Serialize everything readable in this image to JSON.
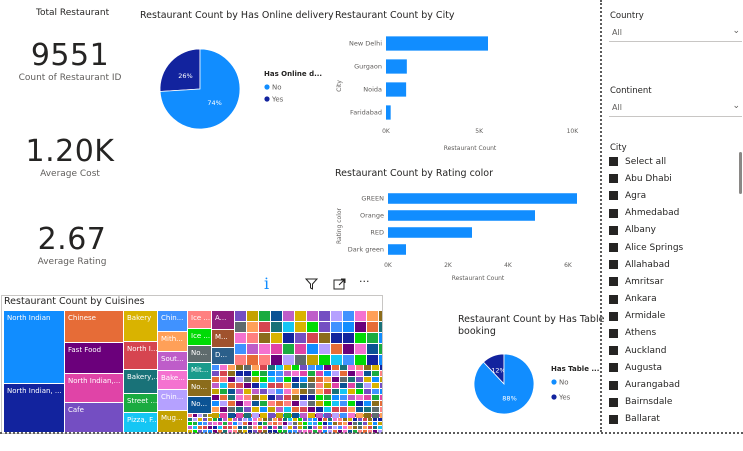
{
  "kpis": [
    {
      "title": "Total Restaurant",
      "value": "9551",
      "label": "Count of Restaurant ID"
    },
    {
      "title": "",
      "value": "1.20K",
      "label": "Average Cost"
    },
    {
      "title": "",
      "value": "2.67",
      "label": "Average Rating"
    }
  ],
  "online_delivery": {
    "title": "Restaurant Count by Has Online delivery",
    "legend_title": "Has Online d...",
    "legend": [
      {
        "name": "No",
        "color": "#118dff"
      },
      {
        "name": "Yes",
        "color": "#12239e"
      }
    ],
    "labels": [
      "26%",
      "74%"
    ]
  },
  "city_chart": {
    "title": "Restaurant Count by City",
    "ylabel": "City",
    "xlabel": "Restaurant Count",
    "ticks": [
      "0K",
      "5K",
      "10K"
    ]
  },
  "rating_chart": {
    "title": "Restaurant Count by Rating color",
    "ylabel": "Rating color",
    "xlabel": "Restaurant Count",
    "ticks": [
      "0K",
      "2K",
      "4K",
      "6K"
    ]
  },
  "table_booking": {
    "title": "Restaurant Count by Has Table booking",
    "legend_title": "Has Table ...",
    "legend": [
      {
        "name": "No",
        "color": "#118dff"
      },
      {
        "name": "Yes",
        "color": "#12239e"
      }
    ],
    "labels": [
      "12%",
      "88%"
    ]
  },
  "treemap": {
    "title": "Restaurant Count by Cuisines",
    "cells": [
      "North Indian",
      "North Indian, ...",
      "Chinese",
      "Fast Food",
      "North Indian,...",
      "Cafe",
      "Bakery",
      "North I...",
      "Bakery,...",
      "Street ...",
      "Pizza, F...",
      "Chin...",
      "Mith...",
      "Sout...",
      "Bake...",
      "Chin...",
      "Mug...",
      "Ice ...",
      "Ice ...",
      "No...",
      "Mit...",
      "No...",
      "No...",
      "A...",
      "M...",
      "D..."
    ]
  },
  "visual_header": {
    "info": "i",
    "filter": "filter",
    "focus": "focus",
    "more": "···"
  },
  "slicers": {
    "country": {
      "title": "Country",
      "value": "All"
    },
    "continent": {
      "title": "Continent",
      "value": "All"
    },
    "city": {
      "title": "City",
      "items": [
        "Select all",
        "Abu Dhabi",
        "Agra",
        "Ahmedabad",
        "Albany",
        "Alice Springs",
        "Allahabad",
        "Amritsar",
        "Ankara",
        "Armidale",
        "Athens",
        "Auckland",
        "Augusta",
        "Aurangabad",
        "Bairnsdale",
        "Ballarat"
      ]
    }
  },
  "chart_data": [
    {
      "type": "pie",
      "title": "Restaurant Count by Has Online delivery",
      "categories": [
        "No",
        "Yes"
      ],
      "values": [
        74,
        26
      ]
    },
    {
      "type": "bar",
      "title": "Restaurant Count by City",
      "categories": [
        "New Delhi",
        "Gurgaon",
        "Noida",
        "Faridabad"
      ],
      "values": [
        5473,
        1118,
        1080,
        251
      ],
      "xlim": [
        0,
        11000
      ],
      "xlabel": "Restaurant Count",
      "ylabel": "City"
    },
    {
      "type": "bar",
      "title": "Restaurant Count by Rating color",
      "categories": [
        "GREEN",
        "Orange",
        "RED",
        "Dark green"
      ],
      "values": [
        6300,
        4900,
        2800,
        600
      ],
      "xlim": [
        0,
        6500
      ],
      "xlabel": "Restaurant Count",
      "ylabel": "Rating color"
    },
    {
      "type": "pie",
      "title": "Restaurant Count by Has Table booking",
      "categories": [
        "No",
        "Yes"
      ],
      "values": [
        88,
        12
      ]
    }
  ]
}
